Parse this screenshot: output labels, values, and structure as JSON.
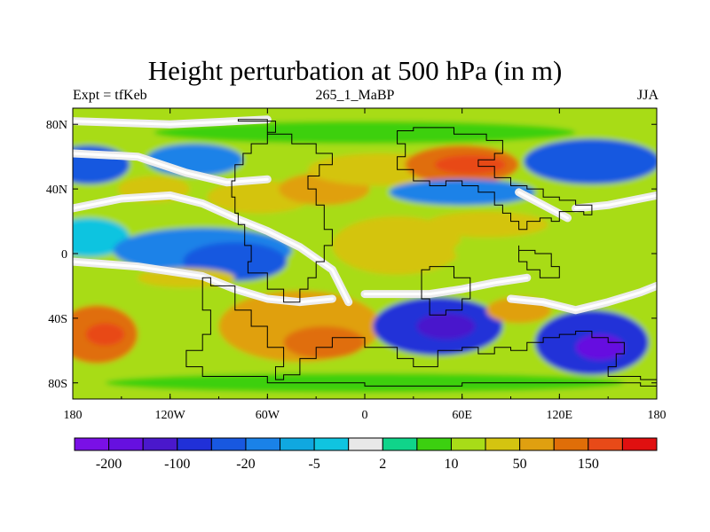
{
  "title": "Height perturbation at 500 hPa (in m)",
  "subtitle_left": "Expt = tfKeb",
  "subtitle_center": "265_1_MaBP",
  "subtitle_right": "JJA",
  "lon_ticks": [
    {
      "lon": -180,
      "label": "180"
    },
    {
      "lon": -120,
      "label": "120W"
    },
    {
      "lon": -60,
      "label": "60W"
    },
    {
      "lon": 0,
      "label": "0"
    },
    {
      "lon": 60,
      "label": "60E"
    },
    {
      "lon": 120,
      "label": "120E"
    },
    {
      "lon": 180,
      "label": "180"
    }
  ],
  "lat_ticks": [
    {
      "lat": 80,
      "label": "80N"
    },
    {
      "lat": 40,
      "label": "40N"
    },
    {
      "lat": 0,
      "label": "0"
    },
    {
      "lat": -40,
      "label": "40S"
    },
    {
      "lat": -80,
      "label": "80S"
    }
  ],
  "colorbar": {
    "colors": [
      "#7a10e6",
      "#6610e0",
      "#4a18cc",
      "#2030d8",
      "#1858e0",
      "#1a82e8",
      "#10a8e0",
      "#10c4e0",
      "#e8e8e8",
      "#10d48a",
      "#3cd010",
      "#a8dc18",
      "#d4c410",
      "#e0a010",
      "#e06e08",
      "#e84a18",
      "#e01010"
    ],
    "labels": [
      {
        "boundary": 1,
        "text": "-200"
      },
      {
        "boundary": 3,
        "text": "-100"
      },
      {
        "boundary": 5,
        "text": "-20"
      },
      {
        "boundary": 7,
        "text": "-5"
      },
      {
        "boundary": 9,
        "text": "2"
      },
      {
        "boundary": 11,
        "text": "10"
      },
      {
        "boundary": 13,
        "text": "50"
      },
      {
        "boundary": 15,
        "text": "150"
      }
    ]
  },
  "field": {
    "background_level": 11,
    "features": [
      {
        "lon": -170,
        "lat": 55,
        "rlon": 25,
        "rlat": 12,
        "level": 4
      },
      {
        "lon": -105,
        "lat": 58,
        "rlon": 30,
        "rlat": 10,
        "level": 5
      },
      {
        "lon": -130,
        "lat": 40,
        "rlon": 22,
        "rlat": 8,
        "level": 12
      },
      {
        "lon": -65,
        "lat": 35,
        "rlon": 32,
        "rlat": 10,
        "level": 12
      },
      {
        "lon": -25,
        "lat": 40,
        "rlon": 28,
        "rlat": 10,
        "level": 13
      },
      {
        "lon": 10,
        "lat": 52,
        "rlon": 45,
        "rlat": 10,
        "level": 12
      },
      {
        "lon": 60,
        "lat": 55,
        "rlon": 35,
        "rlat": 12,
        "level": 14
      },
      {
        "lon": 65,
        "lat": 55,
        "rlon": 22,
        "rlat": 6,
        "level": 15
      },
      {
        "lon": 60,
        "lat": 38,
        "rlon": 45,
        "rlat": 8,
        "level": 5
      },
      {
        "lon": 140,
        "lat": 57,
        "rlon": 42,
        "rlat": 14,
        "level": 4
      },
      {
        "lon": 0,
        "lat": 75,
        "rlon": 130,
        "rlat": 7,
        "level": 10
      },
      {
        "lon": -170,
        "lat": 10,
        "rlon": 25,
        "rlat": 12,
        "level": 7
      },
      {
        "lon": -100,
        "lat": 2,
        "rlon": 55,
        "rlat": 14,
        "level": 5
      },
      {
        "lon": -80,
        "lat": -5,
        "rlon": 32,
        "rlat": 12,
        "level": 4
      },
      {
        "lon": 20,
        "lat": 5,
        "rlon": 40,
        "rlat": 18,
        "level": 12
      },
      {
        "lon": 110,
        "lat": 2,
        "rlon": 55,
        "rlat": 14,
        "level": 11
      },
      {
        "lon": 75,
        "lat": 18,
        "rlon": 38,
        "rlat": 8,
        "level": 12
      },
      {
        "lon": -165,
        "lat": -50,
        "rlon": 25,
        "rlat": 18,
        "level": 14
      },
      {
        "lon": -160,
        "lat": -50,
        "rlon": 12,
        "rlat": 7,
        "level": 15
      },
      {
        "lon": -40,
        "lat": -45,
        "rlon": 50,
        "rlat": 22,
        "level": 13
      },
      {
        "lon": -25,
        "lat": -55,
        "rlon": 25,
        "rlat": 10,
        "level": 14
      },
      {
        "lon": 45,
        "lat": -45,
        "rlon": 40,
        "rlat": 18,
        "level": 3
      },
      {
        "lon": 50,
        "lat": -45,
        "rlon": 18,
        "rlat": 8,
        "level": 2
      },
      {
        "lon": 140,
        "lat": -55,
        "rlon": 35,
        "rlat": 20,
        "level": 3
      },
      {
        "lon": 145,
        "lat": -58,
        "rlon": 15,
        "rlat": 8,
        "level": 1
      },
      {
        "lon": 95,
        "lat": -35,
        "rlon": 20,
        "rlat": 8,
        "level": 13
      },
      {
        "lon": -110,
        "lat": -15,
        "rlon": 30,
        "rlat": 6,
        "level": 12
      },
      {
        "lon": 0,
        "lat": -80,
        "rlon": 160,
        "rlat": 6,
        "level": 10
      }
    ],
    "neutral_bands": [
      {
        "points": [
          [
            -180,
            28
          ],
          [
            -150,
            34
          ],
          [
            -120,
            36
          ],
          [
            -100,
            31
          ],
          [
            -80,
            22
          ],
          [
            -60,
            14
          ],
          [
            -40,
            4
          ],
          [
            -20,
            -10
          ],
          [
            -10,
            -30
          ]
        ]
      },
      {
        "points": [
          [
            -180,
            -5
          ],
          [
            -140,
            -8
          ],
          [
            -100,
            -14
          ],
          [
            -80,
            -22
          ],
          [
            -60,
            -28
          ],
          [
            -40,
            -30
          ],
          [
            -20,
            -28
          ]
        ]
      },
      {
        "points": [
          [
            -180,
            62
          ],
          [
            -140,
            60
          ],
          [
            -110,
            50
          ],
          [
            -85,
            44
          ],
          [
            -60,
            46
          ]
        ]
      },
      {
        "points": [
          [
            130,
            28
          ],
          [
            150,
            30
          ],
          [
            170,
            34
          ],
          [
            180,
            36
          ]
        ]
      },
      {
        "points": [
          [
            90,
            -28
          ],
          [
            110,
            -30
          ],
          [
            130,
            -35
          ],
          [
            150,
            -30
          ],
          [
            170,
            -24
          ],
          [
            180,
            -20
          ]
        ]
      },
      {
        "points": [
          [
            0,
            -25
          ],
          [
            20,
            -25
          ],
          [
            40,
            -25
          ],
          [
            60,
            -22
          ],
          [
            80,
            -18
          ],
          [
            100,
            -15
          ]
        ]
      },
      {
        "points": [
          [
            95,
            38
          ],
          [
            110,
            30
          ],
          [
            125,
            22
          ]
        ]
      },
      {
        "points": [
          [
            -180,
            82
          ],
          [
            -120,
            80
          ],
          [
            -60,
            83
          ]
        ]
      }
    ]
  },
  "land_outlines": [
    [
      [
        -78,
        83
      ],
      [
        -55,
        82
      ],
      [
        -60,
        75
      ],
      [
        -70,
        68
      ],
      [
        -75,
        62
      ],
      [
        -80,
        55
      ],
      [
        -82,
        45
      ],
      [
        -80,
        35
      ],
      [
        -78,
        25
      ],
      [
        -74,
        18
      ],
      [
        -70,
        5
      ],
      [
        -72,
        -5
      ],
      [
        -60,
        -12
      ],
      [
        -50,
        -22
      ],
      [
        -40,
        -30
      ],
      [
        -35,
        -22
      ],
      [
        -30,
        -15
      ],
      [
        -25,
        -5
      ],
      [
        -20,
        5
      ],
      [
        -25,
        15
      ],
      [
        -30,
        30
      ],
      [
        -35,
        40
      ],
      [
        -28,
        48
      ],
      [
        -20,
        55
      ],
      [
        -30,
        62
      ],
      [
        -45,
        68
      ],
      [
        -60,
        74
      ],
      [
        -78,
        83
      ]
    ],
    [
      [
        -95,
        -15
      ],
      [
        -80,
        -20
      ],
      [
        -70,
        -35
      ],
      [
        -60,
        -45
      ],
      [
        -50,
        -58
      ],
      [
        -55,
        -70
      ],
      [
        -50,
        -78
      ],
      [
        -40,
        -75
      ],
      [
        -30,
        -65
      ],
      [
        -20,
        -58
      ],
      [
        0,
        -52
      ],
      [
        20,
        -58
      ],
      [
        30,
        -65
      ],
      [
        45,
        -70
      ],
      [
        60,
        -60
      ],
      [
        70,
        -58
      ],
      [
        80,
        -62
      ],
      [
        90,
        -58
      ],
      [
        100,
        -60
      ],
      [
        110,
        -55
      ],
      [
        120,
        -52
      ],
      [
        130,
        -50
      ],
      [
        140,
        -48
      ],
      [
        150,
        -52
      ],
      [
        160,
        -55
      ],
      [
        155,
        -62
      ],
      [
        150,
        -70
      ],
      [
        170,
        -76
      ],
      [
        180,
        -78
      ],
      [
        170,
        -82
      ],
      [
        120,
        -80
      ],
      [
        60,
        -80
      ],
      [
        0,
        -82
      ],
      [
        -60,
        -80
      ],
      [
        -100,
        -76
      ],
      [
        -110,
        -70
      ],
      [
        -100,
        -60
      ],
      [
        -95,
        -50
      ],
      [
        -100,
        -35
      ],
      [
        -95,
        -15
      ]
    ],
    [
      [
        30,
        76
      ],
      [
        55,
        78
      ],
      [
        75,
        74
      ],
      [
        85,
        70
      ],
      [
        80,
        62
      ],
      [
        70,
        58
      ],
      [
        80,
        54
      ],
      [
        90,
        47
      ],
      [
        100,
        42
      ],
      [
        110,
        40
      ],
      [
        120,
        35
      ],
      [
        130,
        33
      ],
      [
        140,
        30
      ],
      [
        135,
        24
      ],
      [
        120,
        26
      ],
      [
        115,
        20
      ],
      [
        108,
        22
      ],
      [
        100,
        20
      ],
      [
        95,
        15
      ],
      [
        90,
        20
      ],
      [
        85,
        25
      ],
      [
        80,
        30
      ],
      [
        70,
        38
      ],
      [
        60,
        42
      ],
      [
        50,
        45
      ],
      [
        40,
        42
      ],
      [
        30,
        45
      ],
      [
        20,
        52
      ],
      [
        25,
        60
      ],
      [
        20,
        68
      ],
      [
        30,
        76
      ]
    ],
    [
      [
        95,
        5
      ],
      [
        105,
        2
      ],
      [
        115,
        0
      ],
      [
        120,
        -8
      ],
      [
        118,
        -15
      ],
      [
        108,
        -15
      ],
      [
        100,
        -10
      ],
      [
        95,
        -5
      ],
      [
        95,
        5
      ]
    ],
    [
      [
        40,
        -10
      ],
      [
        55,
        -8
      ],
      [
        65,
        -15
      ],
      [
        60,
        -28
      ],
      [
        50,
        -35
      ],
      [
        40,
        -38
      ],
      [
        35,
        -28
      ],
      [
        40,
        -10
      ]
    ]
  ]
}
